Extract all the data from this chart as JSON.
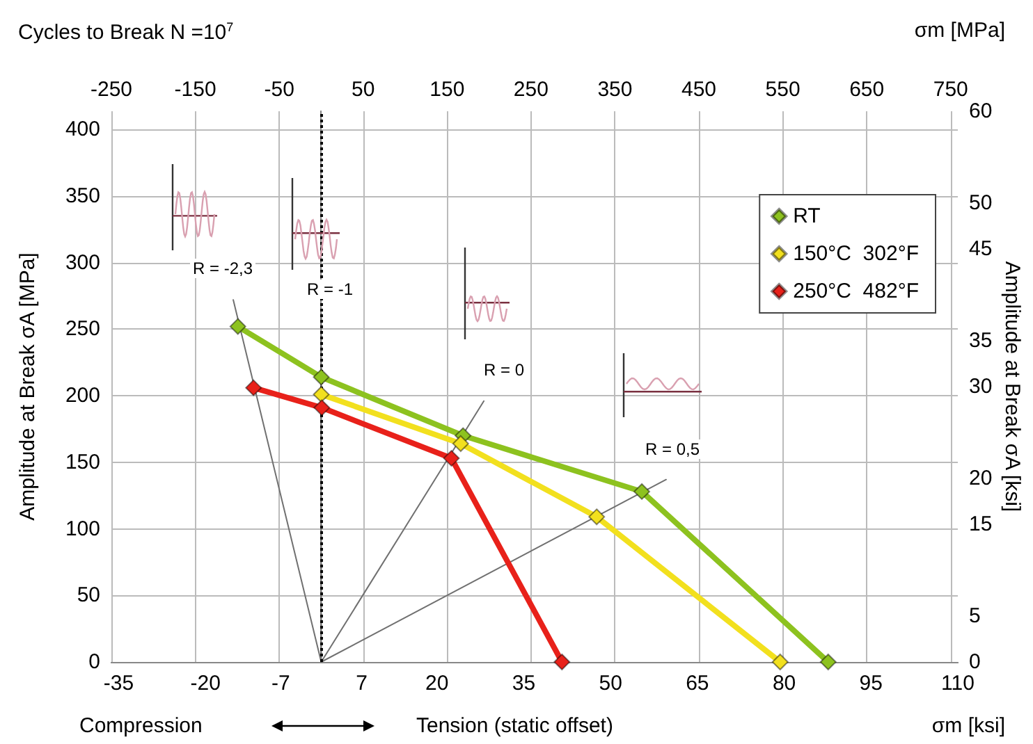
{
  "chart_data": {
    "type": "line",
    "title": "Cycles to Break N =10$^{7}$",
    "xlabel": "σm [ksi]",
    "x2label": "σm [MPa]",
    "ylabel": "Amplitude at Break σA [MPa]",
    "y2label": "Amplitude at Break σA [ksi]",
    "xlim": [
      -36.26,
      110
    ],
    "xticks": [
      -35,
      -20,
      -7,
      7,
      20,
      35,
      50,
      65,
      80,
      95,
      110
    ],
    "x2lim": [
      -250,
      758.5
    ],
    "x2ticks": [
      -250,
      -150,
      -50,
      50,
      150,
      250,
      350,
      450,
      550,
      650,
      750
    ],
    "ylim": [
      0,
      413.7
    ],
    "yticks": [
      0,
      50,
      100,
      150,
      200,
      250,
      300,
      350,
      400
    ],
    "y2lim": [
      0,
      60
    ],
    "y2ticks": [
      0,
      5,
      15,
      20,
      30,
      35,
      45,
      50,
      60
    ],
    "series": [
      {
        "name": "RT",
        "color": "#8dc21f",
        "x": [
          -14.4,
          0,
          24.5,
          55.4,
          87.6
        ],
        "values": [
          252,
          214,
          170,
          128,
          0
        ]
      },
      {
        "name": "150°C  302°F",
        "color": "#f2e01e",
        "x": [
          0,
          24.1,
          47.6,
          79.3
        ],
        "values": [
          201,
          164,
          109,
          0
        ]
      },
      {
        "name": "250°C  482°F",
        "color": "#e8211a",
        "x": [
          -11.7,
          0.1,
          22.5,
          41.6
        ],
        "values": [
          206,
          191,
          153,
          0
        ]
      },
      {
        "color": "#707070",
        "marker": "none",
        "x": [
          0,
          -15.2
        ],
        "values": [
          0,
          272
        ]
      },
      {
        "color": "#707070",
        "marker": "none",
        "x": [
          0,
          0
        ],
        "values": [
          0,
          262
        ]
      },
      {
        "color": "#707070",
        "marker": "none",
        "x": [
          0,
          28.1
        ],
        "values": [
          0,
          196
        ]
      },
      {
        "color": "#707070",
        "marker": "none",
        "x": [
          0,
          59.6
        ],
        "values": [
          0,
          137
        ]
      }
    ],
    "ref_lines": [
      {
        "axis": "x",
        "value": 0,
        "color": "#000000",
        "line_style": "dotted"
      }
    ],
    "annotations": [
      "R = -2,3",
      "R = -1",
      "R = 0",
      "R = 0,5",
      "Compression",
      "Tension (static offset)"
    ],
    "marker": "diamond",
    "line_style": "solid",
    "grid": true,
    "legend": "top right"
  }
}
